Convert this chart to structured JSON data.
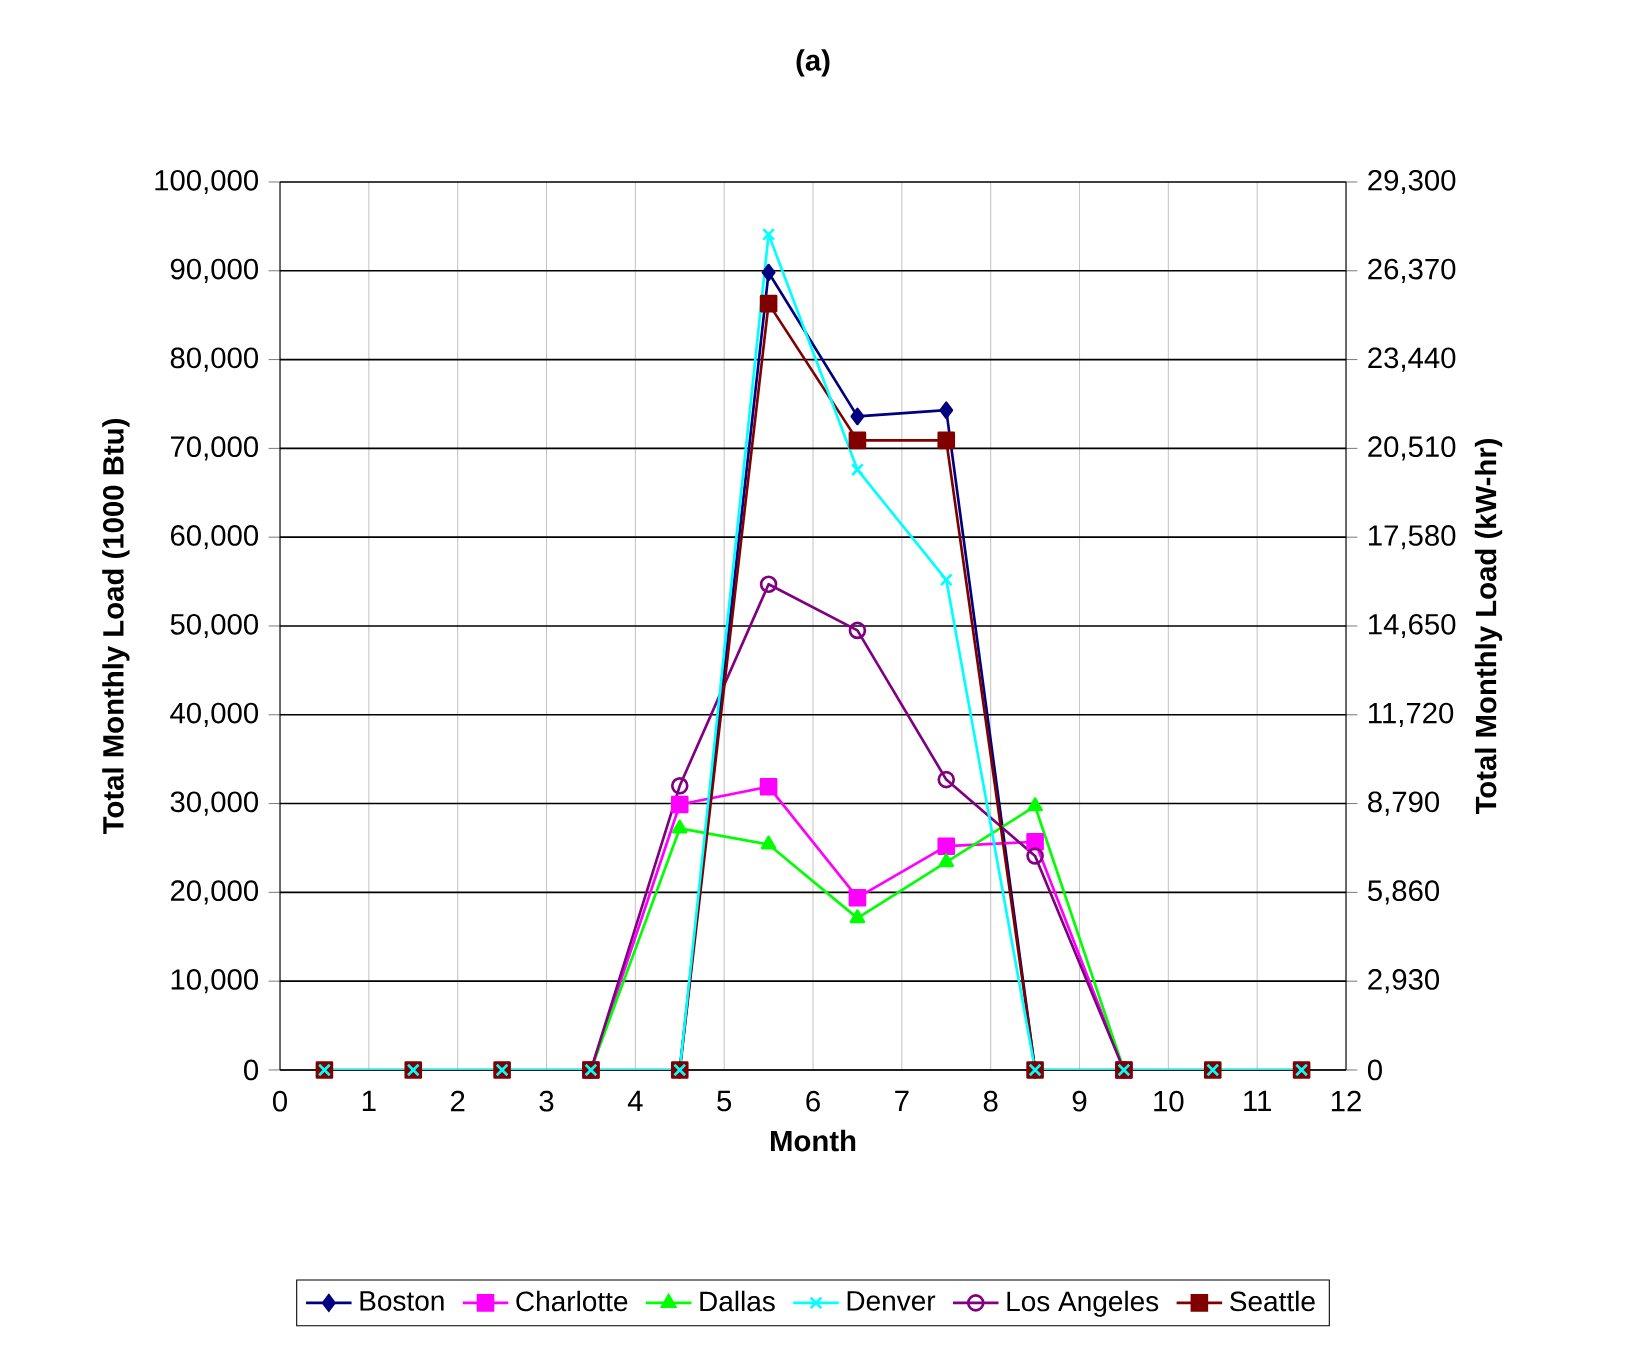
{
  "chart_data": {
    "type": "line",
    "title": "(a)",
    "xlabel": "Month",
    "ylabel": "Total Monthly Load (1000 Btu)",
    "y2label": "Total Monthly Load (kW-hr)",
    "x": [
      0.5,
      1.5,
      2.5,
      3.5,
      4.5,
      5.5,
      6.5,
      7.5,
      8.5,
      9.5,
      10.5,
      11.5
    ],
    "series": [
      {
        "name": "Boston",
        "color": "#000080",
        "marker": "diamond",
        "values": [
          null,
          null,
          null,
          null,
          0,
          89800,
          73600,
          74300,
          0,
          null,
          null,
          null
        ]
      },
      {
        "name": "Charlotte",
        "color": "#ff00ff",
        "marker": "square",
        "values": [
          null,
          null,
          null,
          0,
          29900,
          31900,
          19400,
          25200,
          25700,
          0,
          null,
          null
        ]
      },
      {
        "name": "Dallas",
        "color": "#00ff00",
        "marker": "triangle",
        "values": [
          null,
          null,
          null,
          0,
          27200,
          25400,
          17100,
          23400,
          29700,
          0,
          null,
          null
        ]
      },
      {
        "name": "Denver",
        "color": "#00ffff",
        "marker": "cross",
        "values": [
          0,
          0,
          0,
          0,
          0,
          94100,
          67600,
          55200,
          0,
          0,
          0,
          0
        ]
      },
      {
        "name": "Los Angeles",
        "color": "#800080",
        "marker": "circle",
        "values": [
          null,
          null,
          null,
          0,
          32000,
          54700,
          49500,
          32700,
          24100,
          0,
          null,
          null
        ]
      },
      {
        "name": "Seattle",
        "color": "#800000",
        "marker": "square",
        "values": [
          0,
          0,
          0,
          0,
          0,
          86300,
          70900,
          70900,
          0,
          0,
          0,
          0
        ]
      }
    ],
    "xlim": [
      0,
      12
    ],
    "xticks": [
      0,
      1,
      2,
      3,
      4,
      5,
      6,
      7,
      8,
      9,
      10,
      11,
      12
    ],
    "ylim": [
      0,
      100000
    ],
    "yticks": [
      {
        "value": 0,
        "label": "0"
      },
      {
        "value": 10000,
        "label": "10,000"
      },
      {
        "value": 20000,
        "label": "20,000"
      },
      {
        "value": 30000,
        "label": "30,000"
      },
      {
        "value": 40000,
        "label": "40,000"
      },
      {
        "value": 50000,
        "label": "50,000"
      },
      {
        "value": 60000,
        "label": "60,000"
      },
      {
        "value": 70000,
        "label": "70,000"
      },
      {
        "value": 80000,
        "label": "80,000"
      },
      {
        "value": 90000,
        "label": "90,000"
      },
      {
        "value": 100000,
        "label": "100,000"
      }
    ],
    "y2lim": [
      0,
      29300
    ],
    "y2ticks": [
      {
        "value": 0,
        "label": "0"
      },
      {
        "value": 2930,
        "label": "2,930"
      },
      {
        "value": 5860,
        "label": "5,860"
      },
      {
        "value": 8790,
        "label": "8,790"
      },
      {
        "value": 11720,
        "label": "11,720"
      },
      {
        "value": 14650,
        "label": "14,650"
      },
      {
        "value": 17580,
        "label": "17,580"
      },
      {
        "value": 20510,
        "label": "20,510"
      },
      {
        "value": 23440,
        "label": "23,440"
      },
      {
        "value": 26370,
        "label": "26,370"
      },
      {
        "value": 29300,
        "label": "29,300"
      }
    ],
    "grid": true,
    "legend": "bottom",
    "line_style": "solid"
  }
}
